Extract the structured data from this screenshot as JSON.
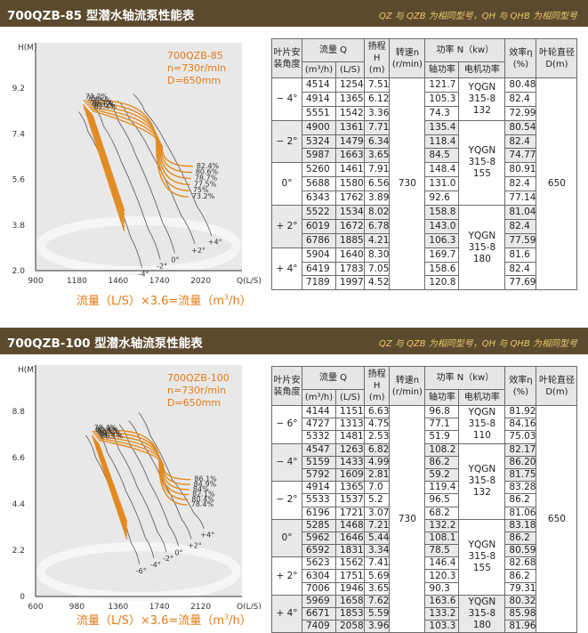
{
  "sections": [
    {
      "title": "700QZB-85 型潜水轴流泵性能表",
      "note": "QZ 与 QZB 为相同型号，QH 与 QHB 为相同型号",
      "caption_prefix": "流量（L/S）×3.6=流量（m",
      "caption_sup": "3",
      "caption_suffix": "/h）",
      "table_header": {
        "angle": "叶片安装角度",
        "flow": "流量 Q",
        "flow_u1": "(m³/h)",
        "flow_u2": "(L/S)",
        "head": "扬程H",
        "head_u": "(m)",
        "speed": "转速n",
        "speed_u": "(r/min)",
        "power": "功率 N（kw）",
        "shaft": "轴功率",
        "motor": "电机功率",
        "eff": "效率η",
        "eff_u": "(%)",
        "dia": "叶轮直径",
        "dia_u": "D(m)"
      },
      "speed": "730",
      "diameter": "650",
      "groups": [
        {
          "angle": "− 4°",
          "rows": [
            [
              "4514",
              "1254",
              "7.51",
              "121.7",
              "80.48"
            ],
            [
              "4914",
              "1365",
              "6.12",
              "105.3",
              "82.4"
            ],
            [
              "5551",
              "1542",
              "3.36",
              "74.3",
              "72.99"
            ]
          ]
        },
        {
          "angle": "− 2°",
          "rows": [
            [
              "4900",
              "1361",
              "7.71",
              "135.4",
              "80.54"
            ],
            [
              "5324",
              "1479",
              "6.34",
              "118.4",
              "82.4"
            ],
            [
              "5987",
              "1663",
              "3.65",
              "84.5",
              "74.77"
            ]
          ]
        },
        {
          "angle": "0°",
          "rows": [
            [
              "5260",
              "1461",
              "7.91",
              "148.4",
              "80.91"
            ],
            [
              "5688",
              "1580",
              "6.56",
              "131.0",
              "82.4"
            ],
            [
              "6343",
              "1762",
              "3.89",
              "92.6",
              "77.14"
            ]
          ]
        },
        {
          "angle": "+ 2°",
          "rows": [
            [
              "5522",
              "1534",
              "8.02",
              "158.8",
              "81.04"
            ],
            [
              "6019",
              "1672",
              "6.78",
              "143.0",
              "82.4"
            ],
            [
              "6786",
              "1885",
              "4.21",
              "106.3",
              "77.59"
            ]
          ]
        },
        {
          "angle": "+ 4°",
          "rows": [
            [
              "5904",
              "1640",
              "8.30",
              "169.7",
              "81.6"
            ],
            [
              "6419",
              "1783",
              "7.05",
              "158.6",
              "82.4"
            ],
            [
              "7189",
              "1997",
              "4.52",
              "120.8",
              "77.69"
            ]
          ]
        }
      ],
      "motors": [
        {
          "text": "YQGN 315-8 132",
          "start": 0,
          "span": 3
        },
        {
          "text": "YQGN 315-8 155",
          "start": 3,
          "span": 6
        },
        {
          "text": "YQGN 315-8 180",
          "start": 9,
          "span": 6
        }
      ]
    },
    {
      "title": "700QZB-100 型潜水轴流泵性能表",
      "note": "QZ 与 QZB 为相同型号，QH 与 QHB 为相同型号",
      "caption_prefix": "流量（L/S）×3.6=流量（m",
      "caption_sup": "3",
      "caption_suffix": "/h）",
      "table_header": {
        "angle": "叶片安装角度",
        "flow": "流量 Q",
        "flow_u1": "(m³/h)",
        "flow_u2": "(L/S)",
        "head": "扬程H",
        "head_u": "(m)",
        "speed": "转速n",
        "speed_u": "(r/min)",
        "power": "功率 N（kw）",
        "shaft": "轴功率",
        "motor": "电机功率",
        "eff": "效率η",
        "eff_u": "(%)",
        "dia": "叶轮直径",
        "dia_u": "D(m)"
      },
      "speed": "730",
      "diameter": "650",
      "groups": [
        {
          "angle": "− 6°",
          "rows": [
            [
              "4144",
              "1151",
              "6.63",
              "96.8",
              "81.92"
            ],
            [
              "4727",
              "1313",
              "4.75",
              "77.1",
              "84.16"
            ],
            [
              "5332",
              "1481",
              "2.53",
              "51.9",
              "75.03"
            ]
          ]
        },
        {
          "angle": "− 4°",
          "rows": [
            [
              "4547",
              "1263",
              "6.82",
              "108.2",
              "82.17"
            ],
            [
              "5159",
              "1433",
              "4.99",
              "86.2",
              "86.20"
            ],
            [
              "5792",
              "1609",
              "2.81",
              "59.2",
              "81.75"
            ]
          ]
        },
        {
          "angle": "− 2°",
          "rows": [
            [
              "4914",
              "1365",
              "7.0",
              "119.4",
              "83.28"
            ],
            [
              "5533",
              "1537",
              "5.2",
              "96.5",
              "86.2"
            ],
            [
              "6196",
              "1721",
              "3.07",
              "68.2",
              "81.06"
            ]
          ]
        },
        {
          "angle": "0°",
          "rows": [
            [
              "5285",
              "1468",
              "7.21",
              "132.2",
              "83.18"
            ],
            [
              "5962",
              "1646",
              "5.44",
              "108.1",
              "86.2"
            ],
            [
              "6592",
              "1831",
              "3.34",
              "78.5",
              "80.59"
            ]
          ]
        },
        {
          "angle": "+ 2°",
          "rows": [
            [
              "5623",
              "1562",
              "7.41",
              "146.4",
              "82.68"
            ],
            [
              "6304",
              "1751",
              "5.69",
              "120.3",
              "86.2"
            ],
            [
              "7006",
              "1946",
              "3.65",
              "90.3",
              "79.31"
            ]
          ]
        },
        {
          "angle": "+ 4°",
          "rows": [
            [
              "5969",
              "1658",
              "7.62",
              "163.6",
              "80.32"
            ],
            [
              "6671",
              "1853",
              "5.59",
              "133.2",
              "85.98"
            ],
            [
              "7409",
              "2058",
              "3.96",
              "103.3",
              "81.96"
            ]
          ]
        }
      ],
      "motors": [
        {
          "text": "YQGN 315-8 110",
          "start": 0,
          "span": 3
        },
        {
          "text": "YQGN 315-8 132",
          "start": 3,
          "span": 6
        },
        {
          "text": "YQGN 315-8 155",
          "start": 9,
          "span": 6
        },
        {
          "text": "YQGN 315-8 180",
          "start": 15,
          "span": 3
        }
      ]
    }
  ],
  "chart_data": [
    {
      "type": "line",
      "info": [
        "700QZB-85",
        "n=730r/min",
        "D=650mm"
      ],
      "ylabel": "H(M)",
      "xlabel": "Q(L/S)",
      "xticks": [
        900,
        1180,
        1460,
        1740,
        2020
      ],
      "yticks": [
        2.0,
        3.8,
        5.6,
        7.4,
        9.2
      ],
      "xlim": [
        900,
        2300
      ],
      "ylim": [
        2.0,
        11.0
      ],
      "series": [
        {
          "name": "-4°",
          "x": [
            1254,
            1365,
            1542
          ],
          "y": [
            7.51,
            6.12,
            3.36
          ]
        },
        {
          "name": "-2°",
          "x": [
            1361,
            1479,
            1663
          ],
          "y": [
            7.71,
            6.34,
            3.65
          ]
        },
        {
          "name": "0°",
          "x": [
            1461,
            1580,
            1762
          ],
          "y": [
            7.91,
            6.56,
            3.89
          ]
        },
        {
          "name": "+2°",
          "x": [
            1534,
            1672,
            1885
          ],
          "y": [
            8.02,
            6.78,
            4.21
          ]
        },
        {
          "name": "+4°",
          "x": [
            1640,
            1783,
            1997
          ],
          "y": [
            8.3,
            7.05,
            4.52
          ]
        }
      ],
      "eff_labels_left": [
        "73.2%",
        "75%",
        "77.5%",
        "78.7%",
        "80.6%",
        "82.4%"
      ],
      "eff_labels_right": [
        "82.4%",
        "80.6%",
        "78.7%",
        "77.5%",
        "75%",
        "73.2%"
      ]
    },
    {
      "type": "line",
      "info": [
        "700QZB-100",
        "n=730r/min",
        "D=650mm"
      ],
      "ylabel": "H(M)",
      "xlabel": "Q(L/S)",
      "xticks": [
        600,
        980,
        1360,
        1740,
        2120
      ],
      "yticks": [
        0,
        2.2,
        4.4,
        6.6,
        8.8
      ],
      "xlim": [
        600,
        2500
      ],
      "ylim": [
        0,
        11.0
      ],
      "series": [
        {
          "name": "-6°",
          "x": [
            1151,
            1313,
            1481
          ],
          "y": [
            6.63,
            4.75,
            2.53
          ]
        },
        {
          "name": "-4°",
          "x": [
            1263,
            1433,
            1609
          ],
          "y": [
            6.82,
            4.99,
            2.81
          ]
        },
        {
          "name": "-2°",
          "x": [
            1365,
            1537,
            1721
          ],
          "y": [
            7.0,
            5.2,
            3.07
          ]
        },
        {
          "name": "0°",
          "x": [
            1468,
            1646,
            1831
          ],
          "y": [
            7.21,
            5.44,
            3.34
          ]
        },
        {
          "name": "+2°",
          "x": [
            1562,
            1751,
            1946
          ],
          "y": [
            7.41,
            5.69,
            3.65
          ]
        },
        {
          "name": "+4°",
          "x": [
            1658,
            1853,
            2058
          ],
          "y": [
            7.62,
            5.59,
            3.96
          ]
        }
      ],
      "eff_labels_left": [
        "78.4%",
        "80.4%",
        "82.1%",
        "84%",
        "84.9%",
        "86.1%"
      ],
      "eff_labels_right": [
        "86.1%",
        "84.9%",
        "84%",
        "82.1%",
        "80.4%",
        "78.4%"
      ]
    }
  ]
}
